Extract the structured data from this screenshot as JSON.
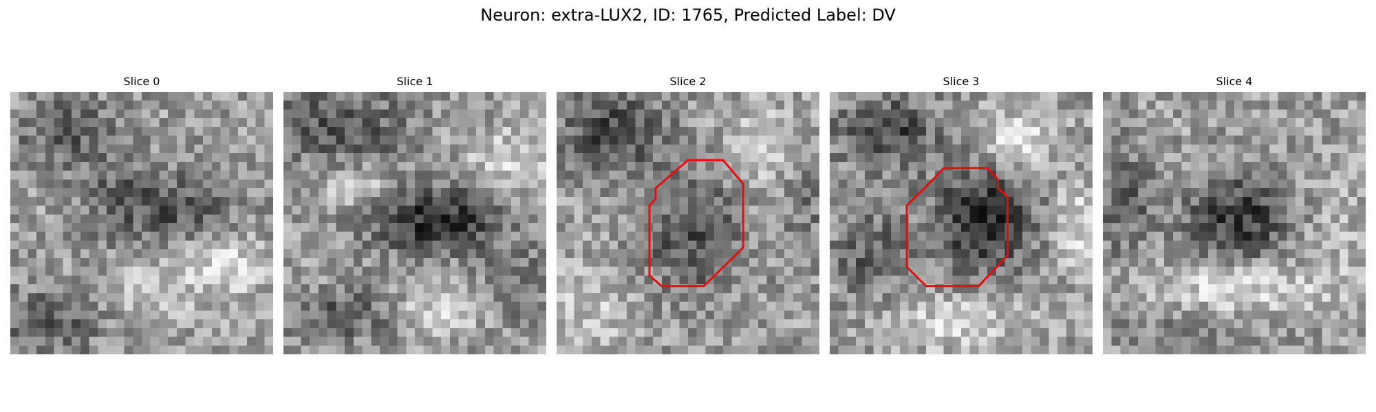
{
  "figure": {
    "title": "Neuron: extra-LUX2, ID: 1765, Predicted Label: DV",
    "outline_color": "#e01010"
  },
  "panels": [
    {
      "title": "Slice 0",
      "has_outline": false
    },
    {
      "title": "Slice 1",
      "has_outline": false
    },
    {
      "title": "Slice 2",
      "has_outline": true
    },
    {
      "title": "Slice 3",
      "has_outline": true
    },
    {
      "title": "Slice 4",
      "has_outline": false
    }
  ]
}
